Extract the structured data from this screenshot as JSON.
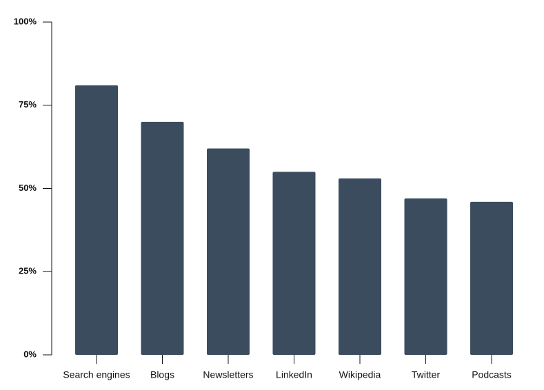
{
  "chart_data": {
    "type": "bar",
    "categories": [
      "Search engines",
      "Blogs",
      "Newsletters",
      "LinkedIn",
      "Wikipedia",
      "Twitter",
      "Podcasts"
    ],
    "values": [
      81,
      70,
      62,
      55,
      53,
      47,
      46
    ],
    "color": "#3b4c5e",
    "ylim": [
      0,
      100
    ],
    "yticks": [
      {
        "value": 0,
        "label": "0%"
      },
      {
        "value": 25,
        "label": "25%"
      },
      {
        "value": 50,
        "label": "50%"
      },
      {
        "value": 75,
        "label": "75%"
      },
      {
        "value": 100,
        "label": "100%"
      }
    ],
    "grid": false
  }
}
